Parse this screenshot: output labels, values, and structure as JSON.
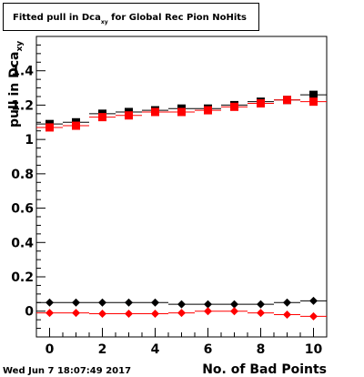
{
  "chart_data": {
    "type": "scatter",
    "title_main": "Fitted pull in Dca",
    "title_sub": "xy",
    "title_rest": " for Global Rec Pion NoHits",
    "xlabel": "No. of Bad Points",
    "ylabel_main": "pull in Dca",
    "ylabel_sub": "xy",
    "xlim": [
      -0.5,
      10.5
    ],
    "ylim": [
      -0.15,
      1.6
    ],
    "xticks": [
      0,
      2,
      4,
      6,
      8,
      10
    ],
    "yticks": [
      0,
      0.2,
      0.4,
      0.6,
      0.8,
      1,
      1.2,
      1.4
    ],
    "ytick_labels": [
      "0",
      "0.2",
      "0.4",
      "0.6",
      "0.8",
      "1",
      "1.2",
      "1.4"
    ],
    "series": [
      {
        "color": "#000000",
        "marker": "square",
        "x": [
          0,
          1,
          2,
          3,
          4,
          5,
          6,
          7,
          8,
          9,
          10
        ],
        "y": [
          1.09,
          1.1,
          1.15,
          1.16,
          1.17,
          1.18,
          1.18,
          1.2,
          1.22,
          1.23,
          1.26
        ]
      },
      {
        "color": "#ff0000",
        "marker": "square",
        "x": [
          0,
          1,
          2,
          3,
          4,
          5,
          6,
          7,
          8,
          9,
          10
        ],
        "y": [
          1.07,
          1.08,
          1.13,
          1.14,
          1.16,
          1.16,
          1.17,
          1.19,
          1.21,
          1.23,
          1.22
        ]
      },
      {
        "color": "#000000",
        "marker": "diamond",
        "x": [
          0,
          1,
          2,
          3,
          4,
          5,
          6,
          7,
          8,
          9,
          10
        ],
        "y": [
          0.05,
          0.05,
          0.05,
          0.05,
          0.05,
          0.04,
          0.04,
          0.04,
          0.04,
          0.05,
          0.06
        ]
      },
      {
        "color": "#ff0000",
        "marker": "diamond",
        "x": [
          0,
          1,
          2,
          3,
          4,
          5,
          6,
          7,
          8,
          9,
          10
        ],
        "y": [
          -0.01,
          -0.01,
          -0.015,
          -0.015,
          -0.015,
          -0.01,
          0.0,
          0.0,
          -0.01,
          -0.02,
          -0.03
        ]
      }
    ]
  },
  "footer": {
    "timestamp": "Wed Jun  7 18:07:49 2017"
  }
}
